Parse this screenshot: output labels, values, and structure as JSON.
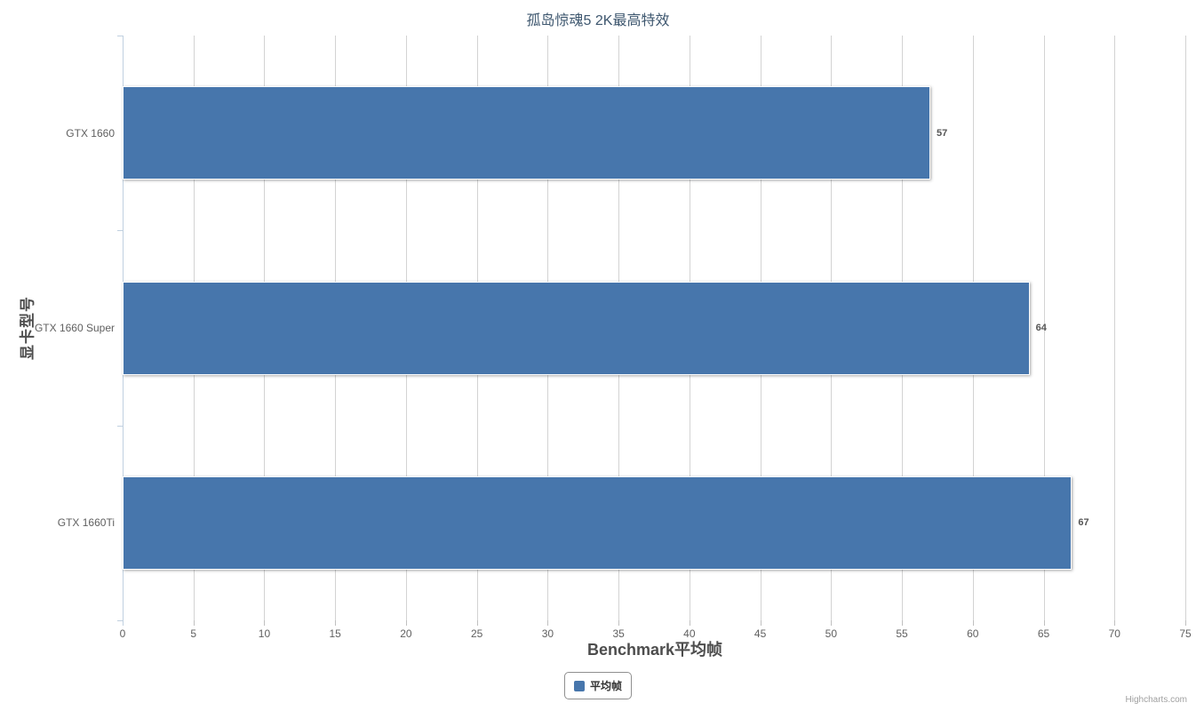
{
  "chart_data": {
    "type": "bar",
    "orientation": "horizontal",
    "title": "孤岛惊魂5 2K最高特效",
    "categories": [
      "GTX 1660",
      "GTX 1660 Super",
      "GTX 1660Ti"
    ],
    "series": [
      {
        "name": "平均帧",
        "values": [
          57,
          64,
          67
        ],
        "color": "#4776AC"
      }
    ],
    "data_labels": [
      "57",
      "64",
      "67"
    ],
    "xlabel": "Benchmark平均帧",
    "ylabel": "显卡型号",
    "xlim": [
      0,
      75
    ],
    "tick_interval": 5,
    "ticks": [
      0,
      5,
      10,
      15,
      20,
      25,
      30,
      35,
      40,
      45,
      50,
      55,
      60,
      65,
      70,
      75
    ],
    "grid": true,
    "legend_position": "bottom-center"
  },
  "legend": {
    "items": [
      {
        "label": "平均帧",
        "color": "#4776AC"
      }
    ]
  },
  "credits": {
    "text": "Highcharts.com"
  },
  "colors": {
    "bar": "#4776AC",
    "title_text": "#3E576F"
  }
}
